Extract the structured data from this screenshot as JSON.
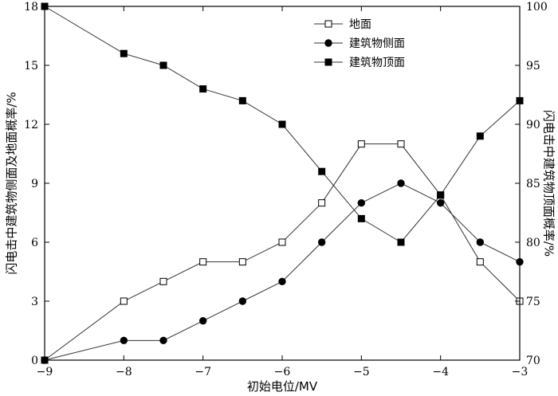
{
  "chart_data": {
    "type": "line",
    "xlabel": "初始电位/MV",
    "ylabel_left": "闪电击中建筑物侧面及地面概率/%",
    "ylabel_right": "闪电击中建筑物顶面概率/%",
    "xlim": [
      -9,
      -3
    ],
    "ylim_left": [
      0,
      18
    ],
    "ylim_right": [
      70,
      100
    ],
    "x_ticks": [
      -9,
      -8,
      -7,
      -6,
      -5,
      -4,
      -3
    ],
    "y_ticks_left": [
      0,
      3,
      6,
      9,
      12,
      15,
      18
    ],
    "y_ticks_right": [
      70,
      75,
      80,
      85,
      90,
      95,
      100
    ],
    "grid": false,
    "legend_position": "top-right",
    "series": [
      {
        "name": "地面",
        "axis": "left",
        "marker": "square-open",
        "x": [
          -9,
          -8,
          -7.5,
          -7,
          -6.5,
          -6,
          -5.5,
          -5,
          -4.5,
          -4,
          -3.5,
          -3
        ],
        "y": [
          0,
          3,
          4,
          5,
          5,
          6,
          8,
          11,
          11,
          8.4,
          5,
          3
        ]
      },
      {
        "name": "建筑物侧面",
        "axis": "left",
        "marker": "circle-filled",
        "x": [
          -9,
          -8,
          -7.5,
          -7,
          -6.5,
          -6,
          -5.5,
          -5,
          -4.5,
          -4,
          -3.5,
          -3
        ],
        "y": [
          0,
          1,
          1,
          2,
          3,
          4,
          6,
          8,
          9,
          8,
          6,
          5
        ]
      },
      {
        "name": "建筑物顶面",
        "axis": "right",
        "marker": "square-filled",
        "x": [
          -9,
          -8,
          -7.5,
          -7,
          -6.5,
          -6,
          -5.5,
          -5,
          -4.5,
          -4,
          -3.5,
          -3
        ],
        "y": [
          100,
          96,
          95,
          93,
          92,
          90,
          86,
          82,
          80,
          84,
          89,
          92
        ]
      }
    ]
  }
}
